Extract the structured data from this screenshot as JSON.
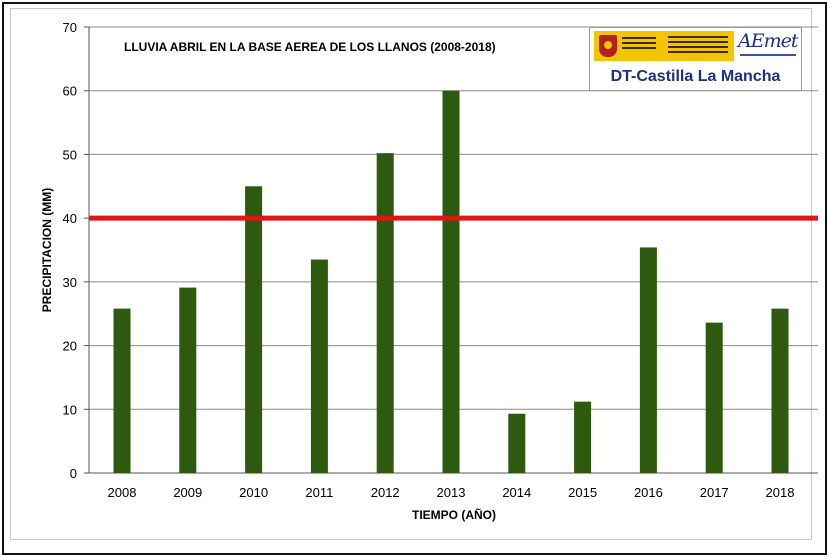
{
  "chart_data": {
    "type": "bar",
    "title": "LLUVIA ABRIL EN LA  BASE AEREA DE LOS LLANOS (2008-2018)",
    "xlabel": "TIEMPO (AÑO)",
    "ylabel": "PRECIPITACION (MM)",
    "categories": [
      "2008",
      "2009",
      "2010",
      "2011",
      "2012",
      "2013",
      "2014",
      "2015",
      "2016",
      "2017",
      "2018"
    ],
    "values": [
      25.8,
      29.1,
      45.0,
      33.5,
      50.2,
      60.0,
      9.3,
      11.2,
      35.4,
      23.6,
      25.8
    ],
    "ylim": [
      0,
      70
    ],
    "yticks": [
      "0",
      "10",
      "20",
      "30",
      "40",
      "50",
      "60",
      "70"
    ],
    "reference_line": 40,
    "grid": true,
    "legend": "none",
    "colors": {
      "bar": "#2d5a0e",
      "reference_line": "#e01515",
      "grid": "#8c8c8c"
    }
  },
  "logo": {
    "brand": "AEmet",
    "band_text": "DT-Castilla La Mancha"
  }
}
